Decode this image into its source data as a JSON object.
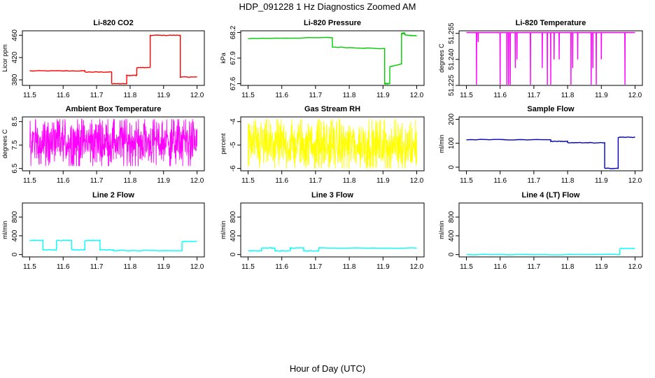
{
  "figure": {
    "title": "HDP_091228  1 Hz Diagnostics Zoomed AM",
    "xlabel": "Hour of Day (UTC)"
  },
  "chart_data": [
    {
      "type": "line",
      "title": "Li-820 CO2",
      "ylabel": "Licor ppm",
      "color": "#ff0000",
      "xlim": [
        11.5,
        12.0
      ],
      "ylim": [
        370,
        468
      ],
      "xticks": [
        11.5,
        11.6,
        11.7,
        11.8,
        11.9,
        12.0
      ],
      "yticks": [
        380,
        420,
        460
      ],
      "segments": [
        {
          "x0": 11.5,
          "x1": 11.665,
          "y": 396
        },
        {
          "x0": 11.665,
          "x1": 11.745,
          "y": 394
        },
        {
          "x0": 11.745,
          "x1": 11.79,
          "y": 373
        },
        {
          "x0": 11.79,
          "x1": 11.82,
          "y": 388
        },
        {
          "x0": 11.82,
          "x1": 11.86,
          "y": 402
        },
        {
          "x0": 11.86,
          "x1": 11.95,
          "y": 460
        },
        {
          "x0": 11.95,
          "x1": 12.0,
          "y": 385
        }
      ]
    },
    {
      "type": "line",
      "title": "Li-820 Pressure",
      "ylabel": "kPa",
      "color": "#00cc00",
      "xlim": [
        11.5,
        12.0
      ],
      "ylim": [
        67.58,
        68.22
      ],
      "xticks": [
        11.5,
        11.6,
        11.7,
        11.8,
        11.9,
        12.0
      ],
      "yticks": [
        67.6,
        67.9,
        68.2
      ],
      "segments": [
        {
          "x0": 11.5,
          "x1": 11.75,
          "y0": 68.13,
          "y1": 68.14
        },
        {
          "x0": 11.75,
          "x1": 11.905,
          "y0": 68.03,
          "y1": 68.01
        },
        {
          "x0": 11.905,
          "x1": 11.92,
          "y0": 67.6,
          "y1": 67.6
        },
        {
          "x0": 11.92,
          "x1": 11.955,
          "y0": 67.8,
          "y1": 67.83
        },
        {
          "x0": 11.955,
          "x1": 11.965,
          "y0": 68.19,
          "y1": 68.19
        },
        {
          "x0": 11.965,
          "x1": 12.0,
          "y0": 68.17,
          "y1": 68.16
        }
      ]
    },
    {
      "type": "line",
      "title": "Li-820 Temperature",
      "ylabel": "degrees C",
      "color": "#ff00ff",
      "xlim": [
        11.5,
        12.0
      ],
      "ylim": [
        51.225,
        51.2565
      ],
      "xticks": [
        11.5,
        11.6,
        11.7,
        11.8,
        11.9,
        12.0
      ],
      "yticks": [
        51.225,
        51.24,
        51.255
      ],
      "baseline": 51.2555,
      "dips": [
        [
          11.53,
          51.225
        ],
        [
          11.535,
          51.25
        ],
        [
          11.6,
          51.225
        ],
        [
          11.62,
          51.225
        ],
        [
          11.625,
          51.225
        ],
        [
          11.63,
          51.225
        ],
        [
          11.645,
          51.235
        ],
        [
          11.65,
          51.24
        ],
        [
          11.69,
          51.225
        ],
        [
          11.725,
          51.235
        ],
        [
          11.74,
          51.225
        ],
        [
          11.75,
          51.225
        ],
        [
          11.76,
          51.24
        ],
        [
          11.775,
          51.24
        ],
        [
          11.81,
          51.225
        ],
        [
          11.815,
          51.235
        ],
        [
          11.83,
          51.24
        ],
        [
          11.87,
          51.225
        ],
        [
          11.875,
          51.235
        ],
        [
          11.885,
          51.225
        ],
        [
          11.9,
          51.24
        ],
        [
          11.97,
          51.225
        ]
      ]
    },
    {
      "type": "line",
      "title": "Ambient Box Temperature",
      "ylabel": "degrees C",
      "color": "#ff00ff",
      "xlim": [
        11.5,
        12.0
      ],
      "ylim": [
        6.4,
        8.7
      ],
      "xticks": [
        11.5,
        11.6,
        11.7,
        11.8,
        11.9,
        12.0
      ],
      "yticks": [
        6.5,
        7.5,
        8.5
      ],
      "noise": {
        "mean": 7.65,
        "range": [
          6.6,
          8.6
        ]
      }
    },
    {
      "type": "line",
      "title": "Gas Stream RH",
      "ylabel": "percent",
      "color": "#ffff00",
      "xlim": [
        11.5,
        12.0
      ],
      "ylim": [
        -6.1,
        -3.8
      ],
      "xticks": [
        11.5,
        11.6,
        11.7,
        11.8,
        11.9,
        12.0
      ],
      "yticks": [
        -6.0,
        -5.0,
        -4.0
      ],
      "noise": {
        "mean": -5.0,
        "range": [
          -6.0,
          -3.9
        ]
      }
    },
    {
      "type": "line",
      "title": "Sample Flow",
      "ylabel": "ml/min",
      "color": "#0000cc",
      "xlim": [
        11.5,
        12.0
      ],
      "ylim": [
        -15,
        210
      ],
      "xticks": [
        11.5,
        11.6,
        11.7,
        11.8,
        11.9,
        12.0
      ],
      "yticks": [
        0,
        100,
        200
      ],
      "segments": [
        {
          "x0": 11.5,
          "x1": 11.75,
          "y": 115
        },
        {
          "x0": 11.75,
          "x1": 11.8,
          "y": 108
        },
        {
          "x0": 11.8,
          "x1": 11.91,
          "y": 102
        },
        {
          "x0": 11.91,
          "x1": 11.95,
          "y": -5
        },
        {
          "x0": 11.95,
          "x1": 12.0,
          "y": 125
        }
      ]
    },
    {
      "type": "line",
      "title": "Line 2 Flow",
      "ylabel": "ml/min",
      "color": "#00ffff",
      "xlim": [
        11.5,
        12.0
      ],
      "ylim": [
        -50,
        1100
      ],
      "xticks": [
        11.5,
        11.6,
        11.7,
        11.8,
        11.9,
        12.0
      ],
      "yticks": [
        0,
        400,
        800
      ],
      "segments": [
        {
          "x0": 11.5,
          "x1": 11.54,
          "y": 300
        },
        {
          "x0": 11.54,
          "x1": 11.58,
          "y": 100
        },
        {
          "x0": 11.58,
          "x1": 11.625,
          "y": 300
        },
        {
          "x0": 11.625,
          "x1": 11.665,
          "y": 100
        },
        {
          "x0": 11.665,
          "x1": 11.71,
          "y": 300
        },
        {
          "x0": 11.71,
          "x1": 11.75,
          "y": 100
        },
        {
          "x0": 11.75,
          "x1": 11.955,
          "y": 85
        },
        {
          "x0": 11.955,
          "x1": 12.0,
          "y": 280
        }
      ]
    },
    {
      "type": "line",
      "title": "Line 3 Flow",
      "ylabel": "ml/min",
      "color": "#00ffff",
      "xlim": [
        11.5,
        12.0
      ],
      "ylim": [
        -50,
        1100
      ],
      "xticks": [
        11.5,
        11.6,
        11.7,
        11.8,
        11.9,
        12.0
      ],
      "yticks": [
        0,
        400,
        800
      ],
      "segments": [
        {
          "x0": 11.5,
          "x1": 11.54,
          "y": 80
        },
        {
          "x0": 11.54,
          "x1": 11.58,
          "y": 140
        },
        {
          "x0": 11.58,
          "x1": 11.625,
          "y": 80
        },
        {
          "x0": 11.625,
          "x1": 11.665,
          "y": 140
        },
        {
          "x0": 11.665,
          "x1": 11.71,
          "y": 80
        },
        {
          "x0": 11.71,
          "x1": 12.0,
          "y": 140
        }
      ]
    },
    {
      "type": "line",
      "title": "Line 4 (LT) Flow",
      "ylabel": "ml/min",
      "color": "#00ffff",
      "xlim": [
        11.5,
        12.0
      ],
      "ylim": [
        -50,
        1100
      ],
      "xticks": [
        11.5,
        11.6,
        11.7,
        11.8,
        11.9,
        12.0
      ],
      "yticks": [
        0,
        400,
        800
      ],
      "segments": [
        {
          "x0": 11.5,
          "x1": 11.955,
          "y": 0
        },
        {
          "x0": 11.955,
          "x1": 12.0,
          "y": 130
        }
      ]
    }
  ]
}
